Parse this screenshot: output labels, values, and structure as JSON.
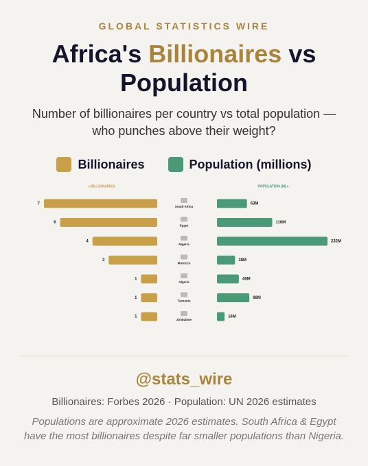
{
  "chart_data": {
    "type": "butterfly",
    "kicker": "GLOBAL STATISTICS WIRE",
    "title": [
      "Africa's",
      "Billionaires",
      "vs Population"
    ],
    "subtitle": "Number of billionaires per country vs total population — who punches above their weight?",
    "axis_labels": [
      "◂ BILLIONAIRES",
      "POPULATION (M) ▸"
    ],
    "categories": [
      "South Africa",
      "Egypt",
      "Nigeria",
      "Morocco",
      "Algeria",
      "Tanzania",
      "Zimbabwe"
    ],
    "series": [
      {
        "name": "Billionaires",
        "color": "#c9a04a",
        "values": [
          7,
          6,
          4,
          3,
          1,
          1,
          1
        ]
      },
      {
        "name": "Population (millions)",
        "color": "#4a9a78",
        "values": [
          63,
          116,
          232,
          38,
          46,
          68,
          16
        ],
        "value_labels": [
          "63M",
          "116M",
          "232M",
          "38M",
          "46M",
          "68M",
          "16M"
        ]
      }
    ],
    "handle": "@stats_wire",
    "source": "Billionaires: Forbes 2026 · Population: UN 2026 estimates",
    "note": "Populations are approximate 2026 estimates. South Africa & Egypt have the most billionaires despite far smaller populations than Nigeria."
  }
}
